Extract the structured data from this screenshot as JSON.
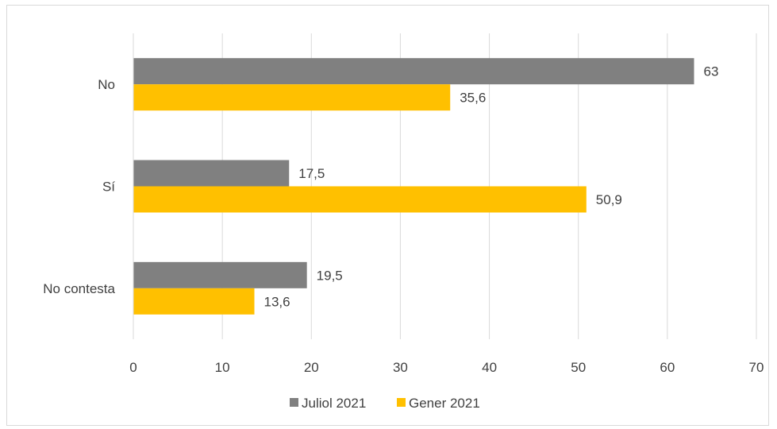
{
  "chart_data": {
    "type": "bar",
    "orientation": "horizontal",
    "categories": [
      "No",
      "Sí",
      "No contesta"
    ],
    "series": [
      {
        "name": "Juliol 2021",
        "values": [
          63,
          17.5,
          19.5
        ],
        "labels": [
          "63",
          "17,5",
          "19,5"
        ],
        "color": "#808080"
      },
      {
        "name": "Gener 2021",
        "values": [
          35.6,
          50.9,
          13.6
        ],
        "labels": [
          "35,6",
          "50,9",
          "13,6"
        ],
        "color": "#ffc000"
      }
    ],
    "xlim": [
      0,
      70
    ],
    "xticks": [
      0,
      10,
      20,
      30,
      40,
      50,
      60,
      70
    ],
    "grid": "vertical",
    "legend": "bottom",
    "colors": {
      "gridline": "#d9d9d9",
      "text": "#404040"
    }
  }
}
